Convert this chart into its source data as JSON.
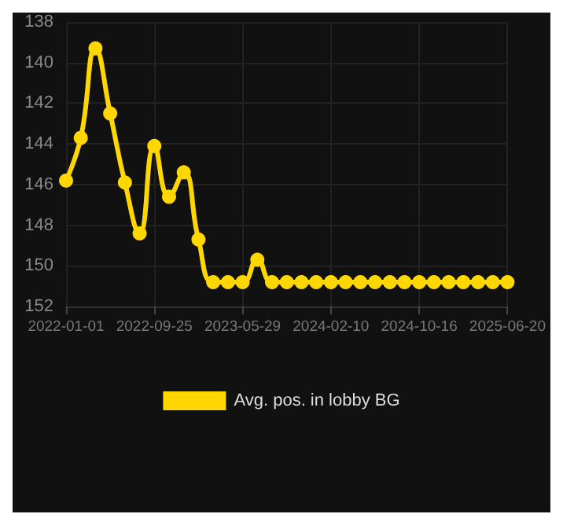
{
  "chart_data": {
    "type": "line",
    "categories": [
      "2022-01-01",
      null,
      null,
      null,
      null,
      null,
      "2022-09-25",
      null,
      null,
      null,
      null,
      null,
      "2023-05-29",
      null,
      null,
      null,
      null,
      null,
      "2024-02-10",
      null,
      null,
      null,
      null,
      null,
      "2024-10-16",
      null,
      null,
      null,
      null,
      null,
      "2025-06-20"
    ],
    "series": [
      {
        "name": "Avg. pos. in lobby BG",
        "color": "#ffd700",
        "values": [
          145.8,
          143.7,
          139.3,
          142.5,
          145.9,
          148.4,
          144.1,
          146.6,
          145.4,
          148.7,
          150.8,
          150.8,
          150.8,
          149.7,
          150.8,
          150.8,
          150.8,
          150.8,
          150.8,
          150.8,
          150.8,
          150.8,
          150.8,
          150.8,
          150.8,
          150.8,
          150.8,
          150.8,
          150.8,
          150.8,
          150.8
        ]
      }
    ],
    "ylim": [
      152,
      138
    ],
    "yticks": [
      138,
      140,
      142,
      144,
      146,
      148,
      150,
      152
    ],
    "grid": true,
    "legend": "bottom",
    "marker": "circle",
    "line_style": "solid"
  }
}
